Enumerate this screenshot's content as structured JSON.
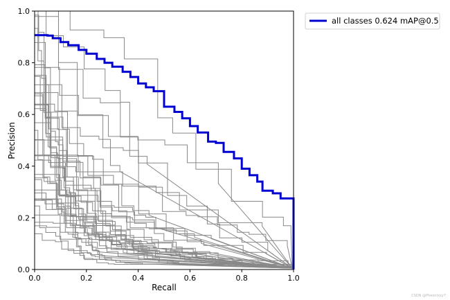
{
  "chart_data": {
    "type": "line",
    "title": "",
    "xlabel": "Recall",
    "ylabel": "Precision",
    "xlim": [
      0,
      1
    ],
    "ylim": [
      0,
      1
    ],
    "xticks": [
      "0.0",
      "0.2",
      "0.4",
      "0.6",
      "0.8",
      "1.0"
    ],
    "yticks": [
      "0.0",
      "0.2",
      "0.4",
      "0.6",
      "0.8",
      "1.0"
    ],
    "grid": false,
    "legend_position": "outside-top-right",
    "series": [
      {
        "name": "all classes 0.624 mAP@0.5",
        "color": "#0000d0",
        "x": [
          0.0,
          0.05,
          0.07,
          0.1,
          0.13,
          0.17,
          0.2,
          0.24,
          0.27,
          0.3,
          0.34,
          0.37,
          0.4,
          0.43,
          0.46,
          0.5,
          0.54,
          0.57,
          0.6,
          0.63,
          0.67,
          0.7,
          0.73,
          0.77,
          0.8,
          0.83,
          0.86,
          0.88,
          0.92,
          0.95,
          1.0
        ],
        "y": [
          0.907,
          0.905,
          0.895,
          0.88,
          0.868,
          0.85,
          0.835,
          0.815,
          0.8,
          0.785,
          0.765,
          0.745,
          0.72,
          0.705,
          0.69,
          0.63,
          0.61,
          0.585,
          0.555,
          0.53,
          0.495,
          0.49,
          0.455,
          0.43,
          0.39,
          0.365,
          0.34,
          0.305,
          0.295,
          0.275,
          0.27
        ]
      }
    ],
    "background_curves": {
      "color": "#888888",
      "count": 40,
      "note": ""
    }
  },
  "watermark": "CSDN @Pheonixxy7"
}
